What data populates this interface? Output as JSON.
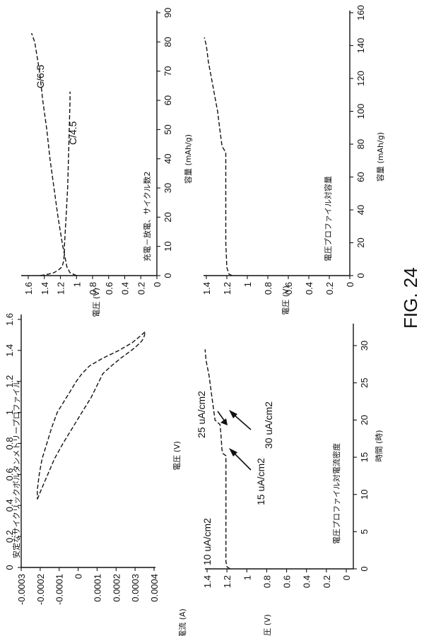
{
  "figure_label": "FIG. 24",
  "chart_data": [
    {
      "id": "cv",
      "type": "line",
      "title": "安定なサイクリックボルタンメトリープロファイル",
      "xlabel": "電圧 (V)",
      "ylabel": "電流 (A)",
      "xlim": [
        0,
        1.6
      ],
      "ylim": [
        -0.0003,
        0.0004
      ],
      "xticks": [
        "0",
        "0.2",
        "0.4",
        "0.6",
        "0.8",
        "1",
        "1.2",
        "1.4",
        "1.6"
      ],
      "yticks": [
        "-0.0003",
        "-0.0002",
        "-0.0001",
        "0",
        "0.0001",
        "0.0002",
        "0.0003",
        "0.0004"
      ],
      "series": [
        {
          "x": [
            0.44,
            0.5,
            0.6,
            0.7,
            0.8,
            0.9,
            1.0,
            1.1,
            1.2,
            1.25,
            1.3,
            1.35,
            1.4,
            1.43,
            1.46,
            1.48,
            1.5,
            1.52
          ],
          "y": [
            -0.000215,
            -0.000195,
            -0.00016,
            -0.000125,
            -8e-05,
            -3e-05,
            2e-05,
            7e-05,
            0.00011,
            0.00013,
            0.000175,
            0.000225,
            0.00028,
            0.00031,
            0.000335,
            0.000345,
            0.00035,
            0.000352
          ]
        },
        {
          "x": [
            1.52,
            1.5,
            1.45,
            1.4,
            1.35,
            1.3,
            1.25,
            1.2,
            1.1,
            1.0,
            0.9,
            0.8,
            0.7,
            0.6,
            0.5,
            0.44
          ],
          "y": [
            0.000352,
            0.000335,
            0.000285,
            0.000215,
            0.00013,
            6e-05,
            2e-05,
            -1e-05,
            -6e-05,
            -0.00011,
            -0.00014,
            -0.000165,
            -0.00019,
            -0.000205,
            -0.000215,
            -0.000215
          ]
        }
      ]
    },
    {
      "id": "vt",
      "type": "line",
      "title": "電圧プロファイル対電流密度",
      "xlabel": "時間 (時)",
      "ylabel": "電圧 (V)",
      "xlim": [
        0,
        32
      ],
      "ylim": [
        0,
        1.4
      ],
      "xticks": [
        "0",
        "5",
        "10",
        "15",
        "20",
        "25",
        "30"
      ],
      "xtick_values": [
        0,
        5,
        10,
        15,
        20,
        25,
        30
      ],
      "yticks": [
        "0",
        "0.2",
        "0.4",
        "0.6",
        "0.8",
        "1",
        "1.2",
        "1.4"
      ],
      "series": [
        {
          "x": [
            0,
            0.3,
            1,
            5,
            10,
            15.2,
            15.5,
            16,
            18,
            19.4,
            20,
            22,
            24,
            26,
            28,
            29.5
          ],
          "y": [
            1.17,
            1.2,
            1.21,
            1.21,
            1.21,
            1.21,
            1.24,
            1.25,
            1.26,
            1.27,
            1.32,
            1.34,
            1.36,
            1.38,
            1.41,
            1.42
          ]
        }
      ],
      "annotations": [
        {
          "text": "10 uA/cm2"
        },
        {
          "text": "15 uA/cm2"
        },
        {
          "text": "25 uA/cm2"
        },
        {
          "text": "30 uA/cm2"
        }
      ]
    },
    {
      "id": "cyc",
      "type": "line",
      "title": "充電－放電、サイクル数2",
      "xlabel": "容量 (mAh/g)",
      "ylabel": "電圧 (V)",
      "xlim": [
        0,
        90
      ],
      "ylim": [
        0,
        1.6
      ],
      "xticks": [
        "0",
        "10",
        "20",
        "30",
        "40",
        "50",
        "60",
        "70",
        "80",
        "90"
      ],
      "yticks": [
        "0",
        "0.2",
        "0.4",
        "0.6",
        "0.8",
        "1",
        "1.2",
        "1.4",
        "1.6"
      ],
      "series": [
        {
          "name": "C/6.5",
          "x": [
            0,
            1,
            3,
            6,
            10,
            15,
            20,
            30,
            40,
            50,
            60,
            70,
            75,
            80,
            83
          ],
          "y": [
            1.0,
            1.08,
            1.12,
            1.14,
            1.17,
            1.2,
            1.23,
            1.28,
            1.33,
            1.37,
            1.42,
            1.46,
            1.49,
            1.52,
            1.56
          ]
        },
        {
          "name": "C/4.5",
          "x": [
            0,
            0.5,
            1,
            2,
            3,
            5,
            8,
            10,
            15,
            20,
            25,
            30,
            40,
            50,
            60,
            63
          ],
          "y": [
            1.45,
            1.35,
            1.28,
            1.22,
            1.18,
            1.16,
            1.15,
            1.15,
            1.14,
            1.13,
            1.12,
            1.11,
            1.1,
            1.09,
            1.08,
            1.08
          ]
        }
      ],
      "annotations": [
        {
          "text": "C/6.5"
        },
        {
          "text": "C/4.5"
        }
      ]
    },
    {
      "id": "cap",
      "type": "line",
      "title": "電圧プロファイル対容量",
      "xlabel": "容量 (mAh/g)",
      "ylabel": "電圧 (V)",
      "xlim": [
        0,
        160
      ],
      "ylim": [
        0,
        1.4
      ],
      "xticks": [
        "0",
        "20",
        "40",
        "60",
        "80",
        "100",
        "120",
        "140",
        "160"
      ],
      "yticks": [
        "0",
        "0.2",
        "0.4",
        "0.6",
        "0.8",
        "1",
        "1.2",
        "1.4"
      ],
      "series": [
        {
          "x": [
            0,
            1,
            5,
            20,
            40,
            60,
            75,
            78,
            80,
            90,
            100,
            110,
            120,
            130,
            140,
            145
          ],
          "y": [
            1.15,
            1.18,
            1.2,
            1.21,
            1.21,
            1.21,
            1.21,
            1.24,
            1.25,
            1.27,
            1.29,
            1.32,
            1.35,
            1.38,
            1.4,
            1.42
          ]
        }
      ]
    }
  ]
}
